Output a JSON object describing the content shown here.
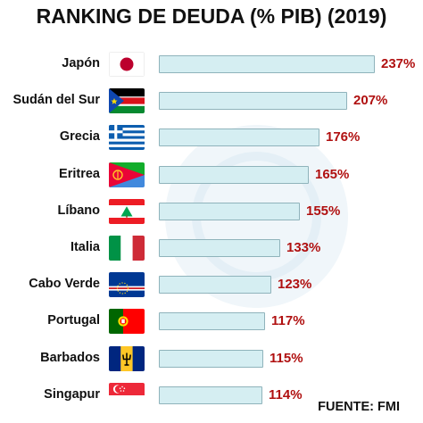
{
  "title": "RANKING DE DEUDA (% PIB) (2019)",
  "source": "FUENTE: FMI",
  "colors": {
    "bar_fill": "#d5eef2",
    "bar_border": "#8fb3bb",
    "value_text": "#b01010"
  },
  "chart_data": {
    "type": "bar",
    "orientation": "horizontal",
    "title": "RANKING DE DEUDA (% PIB) (2019)",
    "xlim": [
      0,
      237
    ],
    "grid": false,
    "legend": "none",
    "categories": [
      "Japón",
      "Sudán del Sur",
      "Grecia",
      "Eritrea",
      "Líbano",
      "Italia",
      "Cabo Verde",
      "Portugal",
      "Barbados",
      "Singapur"
    ],
    "values": [
      237,
      207,
      176,
      165,
      155,
      133,
      123,
      117,
      115,
      114
    ],
    "labels": [
      "237%",
      "207%",
      "176%",
      "165%",
      "155%",
      "133%",
      "123%",
      "117%",
      "115%",
      "114%"
    ],
    "flags": [
      "japan-flag-icon",
      "south-sudan-flag-icon",
      "greece-flag-icon",
      "eritrea-flag-icon",
      "lebanon-flag-icon",
      "italy-flag-icon",
      "cape-verde-flag-icon",
      "portugal-flag-icon",
      "barbados-flag-icon",
      "singapore-flag-icon"
    ]
  }
}
